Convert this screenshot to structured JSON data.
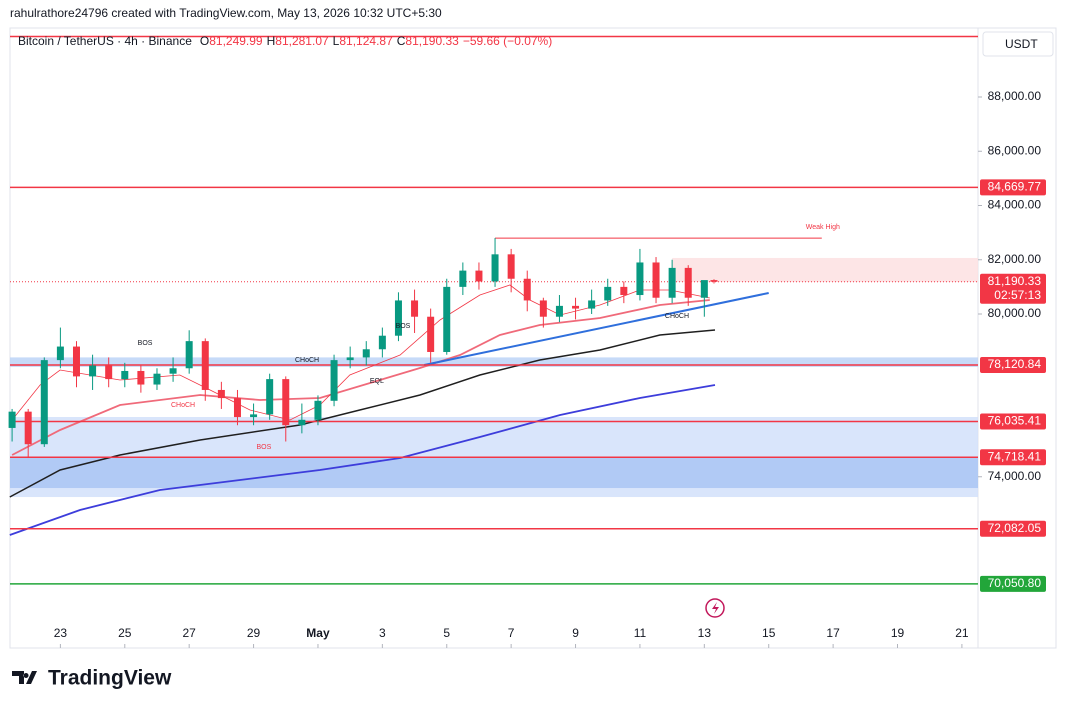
{
  "header": {
    "byline": "rahulrathore24796 created with TradingView.com, May 13, 2026 10:32 UTC+5:30"
  },
  "footer": {
    "brand": "TradingView"
  },
  "chart_data": {
    "type": "candlestick",
    "title": "Bitcoin / TetherUS · 4h · Binance",
    "ohlc_legend": [
      {
        "key": "O",
        "value": "81,249.99"
      },
      {
        "key": "H",
        "value": "81,281.07"
      },
      {
        "key": "L",
        "value": "81,124.87"
      },
      {
        "key": "C",
        "value": "81,190.33"
      }
    ],
    "change": "−59.66 (−0.07%)",
    "currency": "USDT",
    "countdown": "02:57:13",
    "up_color": "#089981",
    "down_color": "#f23645",
    "x": [
      0.5,
      1,
      1.5,
      2,
      2.5,
      3,
      3.5,
      4,
      4.5,
      5,
      5.5,
      6,
      6.5,
      7,
      7.5,
      8,
      8.5,
      9,
      9.5,
      10,
      10.5,
      11,
      11.5,
      12,
      12.5,
      13,
      13.5,
      14,
      14.5,
      15,
      15.5,
      16,
      16.5,
      17,
      17.5,
      18,
      18.5,
      19,
      19.5,
      20,
      20.5,
      21,
      21.5,
      22,
      22.3
    ],
    "open": [
      75800,
      76400,
      75200,
      78300,
      78800,
      77700,
      78100,
      77600,
      77900,
      77400,
      77800,
      78000,
      79000,
      77200,
      76900,
      76200,
      76300,
      77600,
      75900,
      76100,
      76800,
      78300,
      78400,
      78700,
      79200,
      80500,
      79900,
      78600,
      81000,
      81600,
      81200,
      82200,
      81300,
      80500,
      79900,
      80300,
      80200,
      80500,
      81000,
      80700,
      81900,
      80600,
      81700,
      80600,
      81249.99
    ],
    "high": [
      76500,
      76500,
      78400,
      79500,
      79000,
      78500,
      78400,
      78200,
      78100,
      78000,
      78400,
      79400,
      79100,
      77500,
      77200,
      76700,
      77800,
      77700,
      76700,
      77000,
      78500,
      78800,
      79000,
      79500,
      80800,
      80900,
      80200,
      81300,
      81900,
      81900,
      82800,
      82400,
      81600,
      80600,
      80700,
      80600,
      80900,
      81300,
      81200,
      82400,
      82100,
      82000,
      81800,
      81200,
      81281.07
    ],
    "low": [
      75300,
      74700,
      75100,
      78000,
      77300,
      77200,
      77300,
      77300,
      77100,
      77200,
      77500,
      77800,
      76800,
      76500,
      75900,
      75900,
      76100,
      75300,
      75600,
      75900,
      76600,
      78000,
      78100,
      78400,
      79000,
      79300,
      78200,
      78500,
      80700,
      80900,
      81000,
      80800,
      80100,
      79500,
      79700,
      79800,
      80000,
      80300,
      80400,
      80500,
      80400,
      80400,
      80300,
      79900,
      81124.87
    ],
    "close": [
      76400,
      75200,
      78300,
      78800,
      77700,
      78100,
      77600,
      77900,
      77400,
      77800,
      78000,
      79000,
      77200,
      76900,
      76200,
      76300,
      77600,
      75900,
      76100,
      76800,
      78300,
      78400,
      78700,
      79200,
      80500,
      79900,
      78600,
      81000,
      81600,
      81200,
      82200,
      81300,
      80500,
      79900,
      80300,
      80200,
      80500,
      81000,
      80700,
      81900,
      80600,
      81700,
      80600,
      81249.99,
      81190.33
    ],
    "xlim": [
      0.435,
      30.5
    ],
    "ylim": [
      67687,
      90249
    ],
    "xticks": [
      {
        "value": 2,
        "label": "23"
      },
      {
        "value": 4,
        "label": "25"
      },
      {
        "value": 6,
        "label": "27"
      },
      {
        "value": 8,
        "label": "29"
      },
      {
        "value": 10,
        "label": "May"
      },
      {
        "value": 12,
        "label": "3"
      },
      {
        "value": 14,
        "label": "5"
      },
      {
        "value": 16,
        "label": "7"
      },
      {
        "value": 18,
        "label": "9"
      },
      {
        "value": 20,
        "label": "11"
      },
      {
        "value": 22,
        "label": "13"
      },
      {
        "value": 24,
        "label": "15"
      },
      {
        "value": 26,
        "label": "17"
      },
      {
        "value": 28,
        "label": "19"
      },
      {
        "value": 30,
        "label": "21"
      }
    ],
    "yticks": [
      {
        "value": 74000,
        "label": "74,000.00"
      },
      {
        "value": 80000,
        "label": "80,000.00"
      },
      {
        "value": 82000,
        "label": "82,000.00"
      },
      {
        "value": 84000,
        "label": "84,000.00"
      },
      {
        "value": 86000,
        "label": "86,000.00"
      },
      {
        "value": 88000,
        "label": "88,000.00"
      }
    ],
    "grid": false,
    "levels": [
      {
        "value": 90230,
        "color": "#f23645"
      },
      {
        "value": 84669.77,
        "label": "84,669.77",
        "color": "#f23645"
      },
      {
        "value": 81190.33,
        "label": "81,190.33",
        "color": "#f23645",
        "dotted": true,
        "current": true
      },
      {
        "value": 78120.84,
        "label": "78,120.84",
        "color": "#f23645"
      },
      {
        "value": 76035.41,
        "label": "76,035.41",
        "color": "#f23645"
      },
      {
        "value": 74718.41,
        "label": "74,718.41",
        "color": "#f23645"
      },
      {
        "value": 72082.05,
        "label": "72,082.05",
        "color": "#f23645"
      },
      {
        "value": 70050.8,
        "label": "70,050.80",
        "color": "#22a63a"
      }
    ],
    "zones": [
      {
        "from": 78400,
        "to": 78050,
        "x_from": 0.435,
        "color": "#bcd3f7"
      },
      {
        "from": 76203,
        "to": 73253,
        "x_from": 0.435,
        "color": "#d2e1fa"
      },
      {
        "from": 74718,
        "to": 73585,
        "x_from": 0.435,
        "color": "#a9c5f3"
      },
      {
        "from": 82065,
        "to": 81180,
        "x_from": 21.0,
        "color": "#fde0e2"
      }
    ],
    "series": [
      {
        "color": "#1f1f1f",
        "width": 1.5,
        "x": [
          0.43,
          1.99,
          3.85,
          6.34,
          9.44,
          11.3,
          13.17,
          15.03,
          16.89,
          18.76,
          20.62,
          22.33
        ],
        "values": [
          73253,
          74249,
          74802,
          75355,
          75908,
          76461,
          77014,
          77751,
          78304,
          78673,
          79226,
          79410
        ]
      },
      {
        "color": "#3d3ddb",
        "width": 1.8,
        "x": [
          0.43,
          2.61,
          5.09,
          7.58,
          10.06,
          12.55,
          15.03,
          17.52,
          20,
          22.33
        ],
        "values": [
          71853,
          72774,
          73512,
          73880,
          74249,
          74691,
          75465,
          76276,
          76903,
          77382
        ]
      },
      {
        "color": "#f06a7a",
        "width": 1.8,
        "x": [
          0.5,
          1.99,
          3.85,
          6.34,
          8.2,
          10.06,
          11.93,
          13.17,
          14.41,
          15.65,
          16.89,
          18.76,
          20.62,
          22.17
        ],
        "values": [
          74802,
          75723,
          76645,
          77014,
          76830,
          76903,
          77567,
          78009,
          78488,
          79226,
          79594,
          79853,
          80332,
          80516
        ]
      },
      {
        "color": "#f23645",
        "width": 0.8,
        "x": [
          0.5,
          1.37,
          1.99,
          3.85,
          5.71,
          6.65,
          7.89,
          9.13,
          10.06,
          10.99,
          12.55,
          13.79,
          15.03,
          15.96,
          16.58,
          17.52,
          18.76,
          20,
          20.93,
          22.17
        ],
        "values": [
          76092,
          77382,
          77935,
          77567,
          77751,
          77198,
          76461,
          76092,
          76645,
          77751,
          78488,
          79779,
          80700,
          81069,
          80516,
          79963,
          80332,
          80885,
          80885,
          80590
        ]
      }
    ],
    "trendlines": [
      {
        "x": [
          13.3,
          24.0
        ],
        "values": [
          78120,
          80775
        ],
        "color": "#2f6fdc"
      },
      {
        "x": [
          15.5,
          25.65
        ],
        "values": [
          82800,
          82800
        ],
        "color": "#f23645"
      }
    ],
    "annotations": [
      {
        "text": "BOS",
        "x": 4.63,
        "y": 78931,
        "color": "#131722"
      },
      {
        "text": "CHoCH",
        "x": 5.81,
        "y": 76645,
        "color": "#f23645"
      },
      {
        "text": "BOS",
        "x": 8.32,
        "y": 75097,
        "color": "#f23645"
      },
      {
        "text": "CHoCH",
        "x": 9.66,
        "y": 78304,
        "color": "#131722"
      },
      {
        "text": "EQL",
        "x": 11.83,
        "y": 77530,
        "color": "#131722"
      },
      {
        "text": "BOS",
        "x": 12.64,
        "y": 79558,
        "color": "#131722"
      },
      {
        "text": "CHoCH",
        "x": 21.15,
        "y": 79926,
        "color": "#131722"
      },
      {
        "text": "Weak High",
        "x": 25.68,
        "y": 83207,
        "color": "#f23645"
      }
    ]
  }
}
